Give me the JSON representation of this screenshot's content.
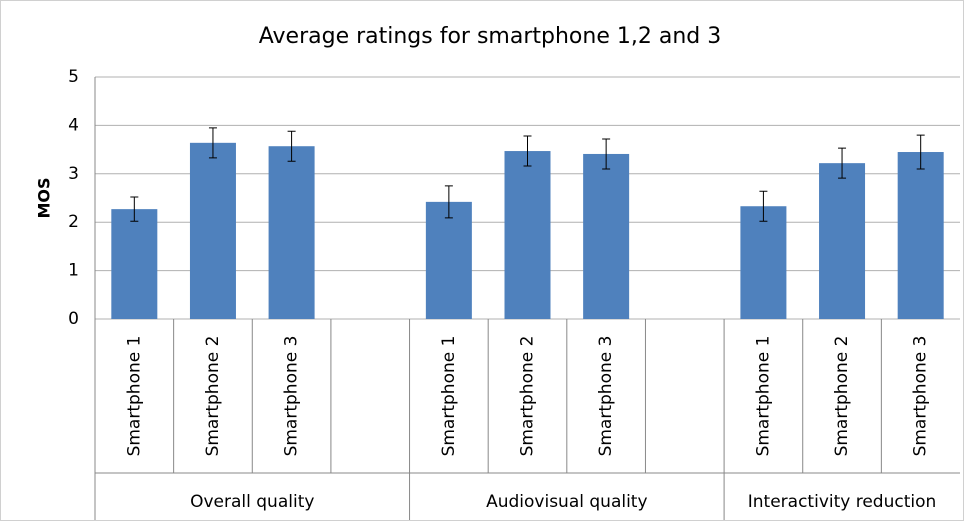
{
  "chart_data": {
    "type": "bar",
    "title": "Average ratings for smartphone 1,2 and 3",
    "y_label": "MOS",
    "categories": [
      "Smartphone 1",
      "Smartphone 2",
      "Smartphone 3",
      null,
      "Smartphone 1",
      "Smartphone 2",
      "Smartphone 3",
      null,
      "Smartphone 1",
      "Smartphone 2",
      "Smartphone 3"
    ],
    "groups": [
      {
        "name": "Overall quality",
        "span": 4
      },
      {
        "name": "Audiovisual quality",
        "span": 4
      },
      {
        "name": "Interactivity reduction",
        "span": 3
      }
    ],
    "values": [
      2.27,
      3.64,
      3.57,
      null,
      2.42,
      3.47,
      3.41,
      null,
      2.33,
      3.22,
      3.45
    ],
    "errors": [
      0.25,
      0.31,
      0.31,
      null,
      0.33,
      0.31,
      0.31,
      null,
      0.31,
      0.31,
      0.35
    ],
    "color": "#4f81bd",
    "ylim": [
      0,
      5
    ],
    "yticks": [
      0,
      1,
      2,
      3,
      4,
      5
    ],
    "grid": true
  }
}
